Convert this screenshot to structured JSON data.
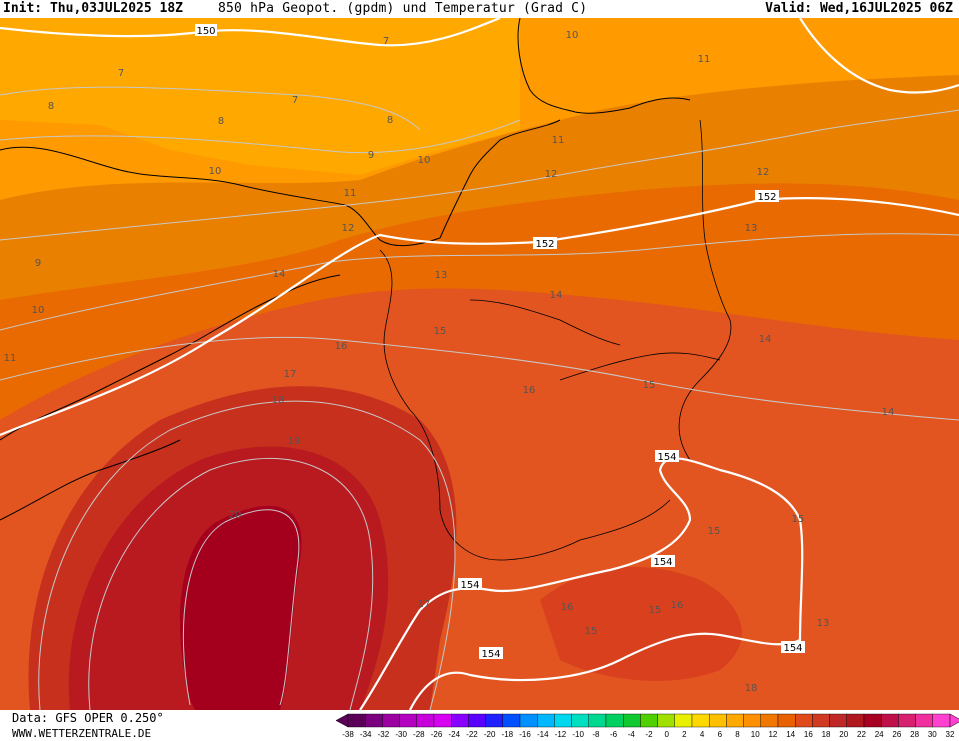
{
  "header": {
    "init": "Init: Thu,03JUL2025 18Z",
    "title": "850 hPa Geopot. (gpdm) und Temperatur (Grad C)",
    "valid": "Valid: Wed,16JUL2025 06Z"
  },
  "footer": {
    "data_source": "Data: GFS OPER 0.250°",
    "website": "WWW.WETTERZENTRALE.DE"
  },
  "legend": {
    "ticks": [
      "-38",
      "-34",
      "-32",
      "-30",
      "-28",
      "-26",
      "-24",
      "-22",
      "-20",
      "-18",
      "-16",
      "-14",
      "-12",
      "-10",
      "-8",
      "-6",
      "-4",
      "-2",
      "0",
      "2",
      "4",
      "6",
      "8",
      "10",
      "12",
      "14",
      "16",
      "18",
      "20",
      "22",
      "24",
      "26",
      "28",
      "30",
      "32"
    ],
    "colors": [
      "#5a0058",
      "#7a0080",
      "#9b00a0",
      "#b400c0",
      "#c800dc",
      "#d800f0",
      "#8a00ff",
      "#5a00ff",
      "#2020ff",
      "#0050ff",
      "#0090ff",
      "#00b8ff",
      "#00d8f0",
      "#00e0c0",
      "#00d890",
      "#00d060",
      "#10c830",
      "#50d000",
      "#a0e000",
      "#e8f000",
      "#ffd800",
      "#ffc000",
      "#ffa800",
      "#ff9000",
      "#f07800",
      "#e86000",
      "#e04a1a",
      "#d03a20",
      "#c02828",
      "#b01820",
      "#a80020",
      "#c0104a",
      "#d82070",
      "#f0309c",
      "#ff40d0"
    ]
  },
  "map_labels": {
    "geopotential": [
      "150",
      "152",
      "152",
      "154",
      "154",
      "154",
      "154",
      "154"
    ],
    "temperature": [
      "7",
      "7",
      "7",
      "8",
      "8",
      "8",
      "9",
      "9",
      "10",
      "10",
      "10",
      "11",
      "11",
      "11",
      "11",
      "12",
      "12",
      "12",
      "13",
      "13",
      "14",
      "14",
      "14",
      "14",
      "15",
      "15",
      "15",
      "15",
      "15",
      "15",
      "16",
      "16",
      "16",
      "16",
      "17",
      "17",
      "18",
      "18",
      "19",
      "20",
      "10",
      "13"
    ]
  }
}
